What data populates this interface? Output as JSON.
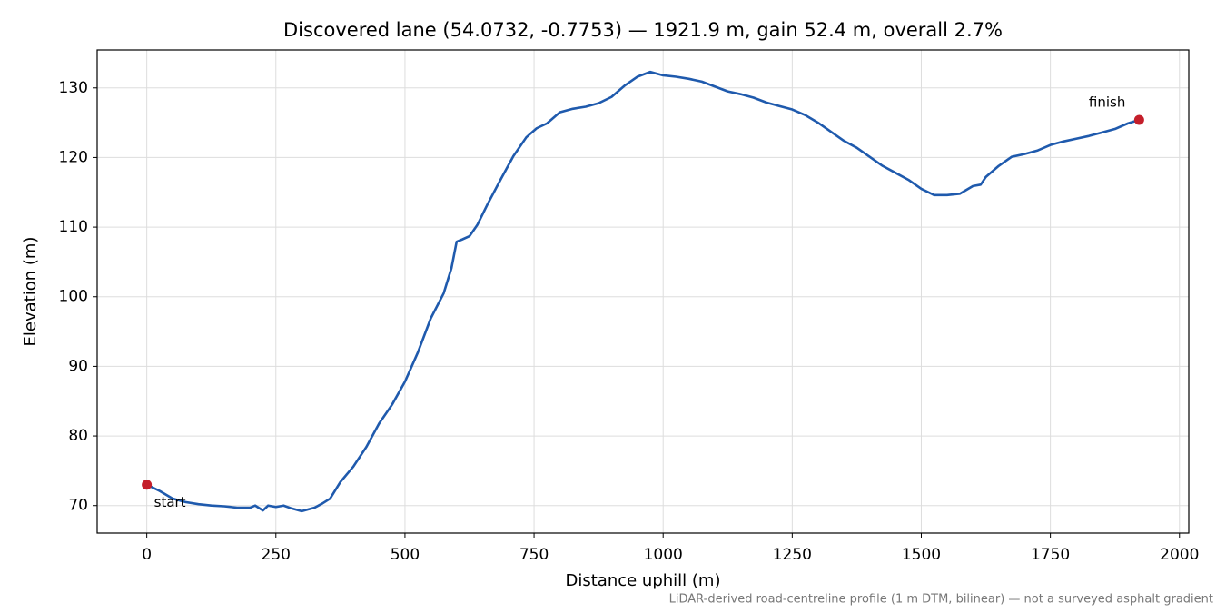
{
  "chart_data": {
    "type": "line",
    "title": "Discovered lane (54.0732, -0.7753) — 1921.9 m, gain 52.4 m, overall 2.7%",
    "xlabel": "Distance uphill (m)",
    "ylabel": "Elevation (m)",
    "footnote": "LiDAR-derived road-centreline profile (1 m DTM, bilinear) — not a surveyed asphalt gradient",
    "xlim": [
      -96.1,
      2018
    ],
    "ylim": [
      66.05,
      135.45
    ],
    "xticks": [
      0,
      250,
      500,
      750,
      1000,
      1250,
      1500,
      1750,
      2000
    ],
    "yticks": [
      70,
      80,
      90,
      100,
      110,
      120,
      130
    ],
    "grid": true,
    "series": [
      {
        "color": "#1f5aad",
        "x": [
          0,
          25,
          50,
          75,
          100,
          125,
          150,
          175,
          200,
          210,
          225,
          235,
          250,
          265,
          280,
          300,
          325,
          340,
          355,
          375,
          400,
          425,
          450,
          475,
          500,
          525,
          550,
          575,
          590,
          600,
          610,
          625,
          640,
          660,
          685,
          710,
          735,
          755,
          775,
          800,
          825,
          850,
          875,
          900,
          925,
          950,
          975,
          1000,
          1025,
          1050,
          1075,
          1100,
          1125,
          1150,
          1175,
          1200,
          1225,
          1250,
          1275,
          1300,
          1325,
          1350,
          1375,
          1400,
          1425,
          1450,
          1475,
          1500,
          1525,
          1550,
          1575,
          1600,
          1615,
          1625,
          1650,
          1675,
          1700,
          1725,
          1750,
          1775,
          1800,
          1825,
          1850,
          1875,
          1900,
          1921.9
        ],
        "values": [
          73.0,
          72.1,
          71.0,
          70.5,
          70.2,
          70.0,
          69.9,
          69.7,
          69.7,
          70.0,
          69.3,
          70.0,
          69.8,
          70.0,
          69.6,
          69.2,
          69.7,
          70.3,
          71.0,
          73.4,
          75.6,
          78.4,
          81.8,
          84.5,
          87.8,
          92.0,
          96.9,
          100.5,
          104.1,
          107.9,
          108.2,
          108.7,
          110.3,
          113.3,
          116.8,
          120.2,
          122.9,
          124.2,
          124.9,
          126.5,
          127.0,
          127.3,
          127.8,
          128.7,
          130.3,
          131.6,
          132.3,
          131.8,
          131.6,
          131.3,
          130.9,
          130.2,
          129.5,
          129.1,
          128.6,
          127.9,
          127.4,
          126.9,
          126.1,
          125.0,
          123.7,
          122.4,
          121.4,
          120.1,
          118.8,
          117.8,
          116.8,
          115.5,
          114.6,
          114.6,
          114.8,
          115.9,
          116.1,
          117.2,
          118.8,
          120.1,
          120.5,
          121.0,
          121.8,
          122.3,
          122.7,
          123.1,
          123.6,
          124.1,
          124.9,
          125.4
        ]
      }
    ],
    "markers": [
      {
        "label": "start",
        "x": 0,
        "y": 73.0,
        "color": "#c41e2a"
      },
      {
        "label": "finish",
        "x": 1921.9,
        "y": 125.4,
        "color": "#c41e2a"
      }
    ]
  }
}
